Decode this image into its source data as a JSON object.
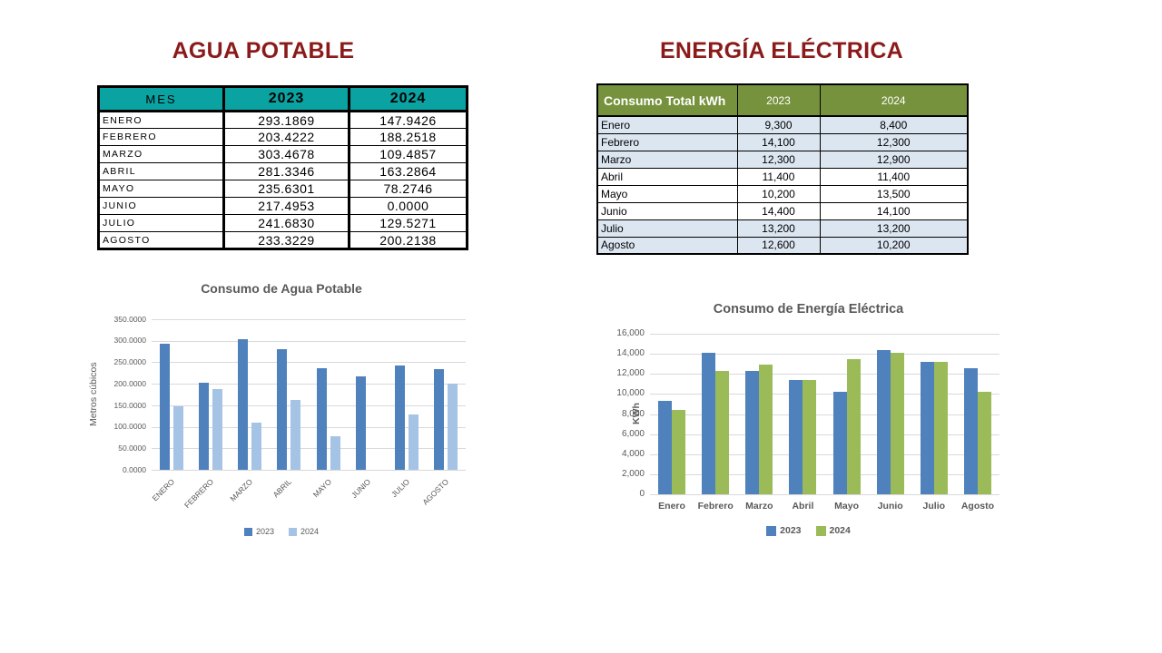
{
  "colors": {
    "section_title": "#8b1a1a",
    "water_header_bg": "#0ba2a2",
    "energy_header_bg": "#76923c",
    "energy_row_shade": "#dce6f1",
    "bar_blue_2023": "#4f81bd",
    "bar_lightblue_2024": "#a5c3e4",
    "bar_green_2024": "#9bbb59",
    "gridline": "#d9d9d9",
    "chart_text": "#595959"
  },
  "left": {
    "title": "AGUA POTABLE",
    "table": {
      "col_headers": [
        "MES",
        "2023",
        "2024"
      ],
      "rows": [
        [
          "ENERO",
          "293.1869",
          "147.9426"
        ],
        [
          "FEBRERO",
          "203.4222",
          "188.2518"
        ],
        [
          "MARZO",
          "303.4678",
          "109.4857"
        ],
        [
          "ABRIL",
          "281.3346",
          "163.2864"
        ],
        [
          "MAYO",
          "235.6301",
          "78.2746"
        ],
        [
          "JUNIO",
          "217.4953",
          "0.0000"
        ],
        [
          "JULIO",
          "241.6830",
          "129.5271"
        ],
        [
          "AGOSTO",
          "233.3229",
          "200.2138"
        ]
      ]
    }
  },
  "right": {
    "title": "ENERGÍA ELÉCTRICA",
    "table": {
      "col_headers": [
        "Consumo Total kWh",
        "2023",
        "2024"
      ],
      "rows": [
        [
          "Enero",
          "9,300",
          "8,400"
        ],
        [
          "Febrero",
          "14,100",
          "12,300"
        ],
        [
          "Marzo",
          "12,300",
          "12,900"
        ],
        [
          "Abril",
          "11,400",
          "11,400"
        ],
        [
          "Mayo",
          "10,200",
          "13,500"
        ],
        [
          "Junio",
          "14,400",
          "14,100"
        ],
        [
          "Julio",
          "13,200",
          "13,200"
        ],
        [
          "Agosto",
          "12,600",
          "10,200"
        ]
      ],
      "shaded_rows": [
        0,
        1,
        2,
        6,
        7
      ]
    }
  },
  "chart_data": [
    {
      "id": "water",
      "type": "bar",
      "title": "Consumo de Agua Potable",
      "xlabel": "",
      "ylabel": "Metros cúbicos",
      "categories": [
        "ENERO",
        "FEBRERO",
        "MARZO",
        "ABRIL",
        "MAYO",
        "JUNIO",
        "JULIO",
        "AGOSTO"
      ],
      "series": [
        {
          "name": "2023",
          "color": "#4f81bd",
          "values": [
            293.1869,
            203.4222,
            303.4678,
            281.3346,
            235.6301,
            217.4953,
            241.683,
            233.3229
          ]
        },
        {
          "name": "2024",
          "color": "#a5c3e4",
          "values": [
            147.9426,
            188.2518,
            109.4857,
            163.2864,
            78.2746,
            0.0,
            129.5271,
            200.2138
          ]
        }
      ],
      "ylim": [
        0,
        350
      ],
      "ytick_labels": [
        "0.0000",
        "50.0000",
        "100.0000",
        "150.0000",
        "200.0000",
        "250.0000",
        "300.0000",
        "350.0000"
      ],
      "grid": true,
      "legend_position": "bottom",
      "category_rotation": -45
    },
    {
      "id": "energy",
      "type": "bar",
      "title": "Consumo de Energía Eléctrica",
      "xlabel": "",
      "ylabel": "KWh",
      "categories": [
        "Enero",
        "Febrero",
        "Marzo",
        "Abril",
        "Mayo",
        "Junio",
        "Julio",
        "Agosto"
      ],
      "series": [
        {
          "name": "2023",
          "color": "#4f81bd",
          "values": [
            9300,
            14100,
            12300,
            11400,
            10200,
            14400,
            13200,
            12600
          ]
        },
        {
          "name": "2024",
          "color": "#9bbb59",
          "values": [
            8400,
            12300,
            12900,
            11400,
            13500,
            14100,
            13200,
            10200
          ]
        }
      ],
      "ylim": [
        0,
        16000
      ],
      "ytick_labels": [
        "0",
        "2,000",
        "4,000",
        "6,000",
        "8,000",
        "10,000",
        "12,000",
        "14,000",
        "16,000"
      ],
      "grid": true,
      "legend_position": "bottom",
      "category_rotation": 0
    }
  ]
}
